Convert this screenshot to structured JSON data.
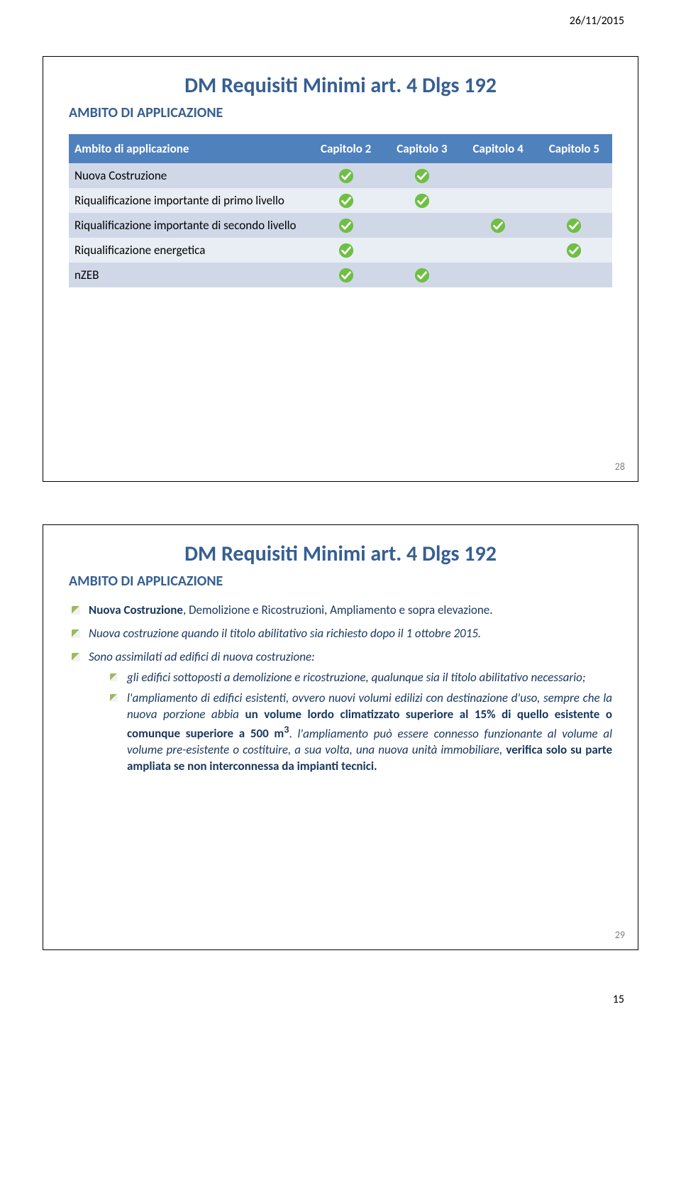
{
  "header": {
    "date": "26/11/2015"
  },
  "footer": {
    "page_number": "15"
  },
  "colors": {
    "heading": "#365f91",
    "table_header_bg": "#4f81bd",
    "row_odd": "#d0d8e8",
    "row_even": "#e9edf4",
    "body_text": "#17365d",
    "check_green": "#6fbf44",
    "check_white": "#ffffff"
  },
  "slide1": {
    "title": "DM Requisiti Minimi art. 4 Dlgs 192",
    "section": "AMBITO DI APPLICAZIONE",
    "number": "28",
    "table": {
      "columns": [
        "Ambito di applicazione",
        "Capitolo 2",
        "Capitolo 3",
        "Capitolo 4",
        "Capitolo 5"
      ],
      "rows": [
        {
          "label": "Nuova Costruzione",
          "checks": [
            true,
            true,
            false,
            false
          ]
        },
        {
          "label": "Riqualificazione importante di primo livello",
          "checks": [
            true,
            true,
            false,
            false
          ]
        },
        {
          "label": "Riqualificazione importante di secondo livello",
          "checks": [
            true,
            false,
            true,
            true
          ]
        },
        {
          "label": "Riqualificazione energetica",
          "checks": [
            true,
            false,
            false,
            true
          ]
        },
        {
          "label": "nZEB",
          "checks": [
            true,
            true,
            false,
            false
          ]
        }
      ]
    }
  },
  "slide2": {
    "title": "DM Requisiti Minimi art. 4 Dlgs 192",
    "section": "AMBITO DI APPLICAZIONE",
    "number": "29",
    "b1_lead": "Nuova Costruzione",
    "b1_rest": ", Demolizione e Ricostruzioni, Ampliamento e sopra elevazione.",
    "b2": "Nuova costruzione quando il titolo abilitativo sia richiesto dopo il 1 ottobre 2015.",
    "b3": "Sono assimilati ad edifici di nuova costruzione:",
    "b3s1": "gli edifici sottoposti a demolizione e ricostruzione, qualunque sia il titolo abilitativo necessario;",
    "b3s2_a": "l'ampliamento di edifici esistenti, ovvero nuovi volumi edilizi con destinazione d'uso, sempre che la nuova porzione abbia ",
    "b3s2_b": "un volume lordo climatizzato superiore al 15% di quello esistente o comunque superiore a 500 m",
    "b3s2_sup": "3",
    "b3s2_c": ". ",
    "b3s2_d": "l'ampliamento può essere connesso funzionante al volume al volume pre-esistente o costituire, a sua volta, una nuova unità immobiliare, ",
    "b3s2_e": "verifica solo su parte ampliata se non interconnessa da impianti tecnici."
  }
}
